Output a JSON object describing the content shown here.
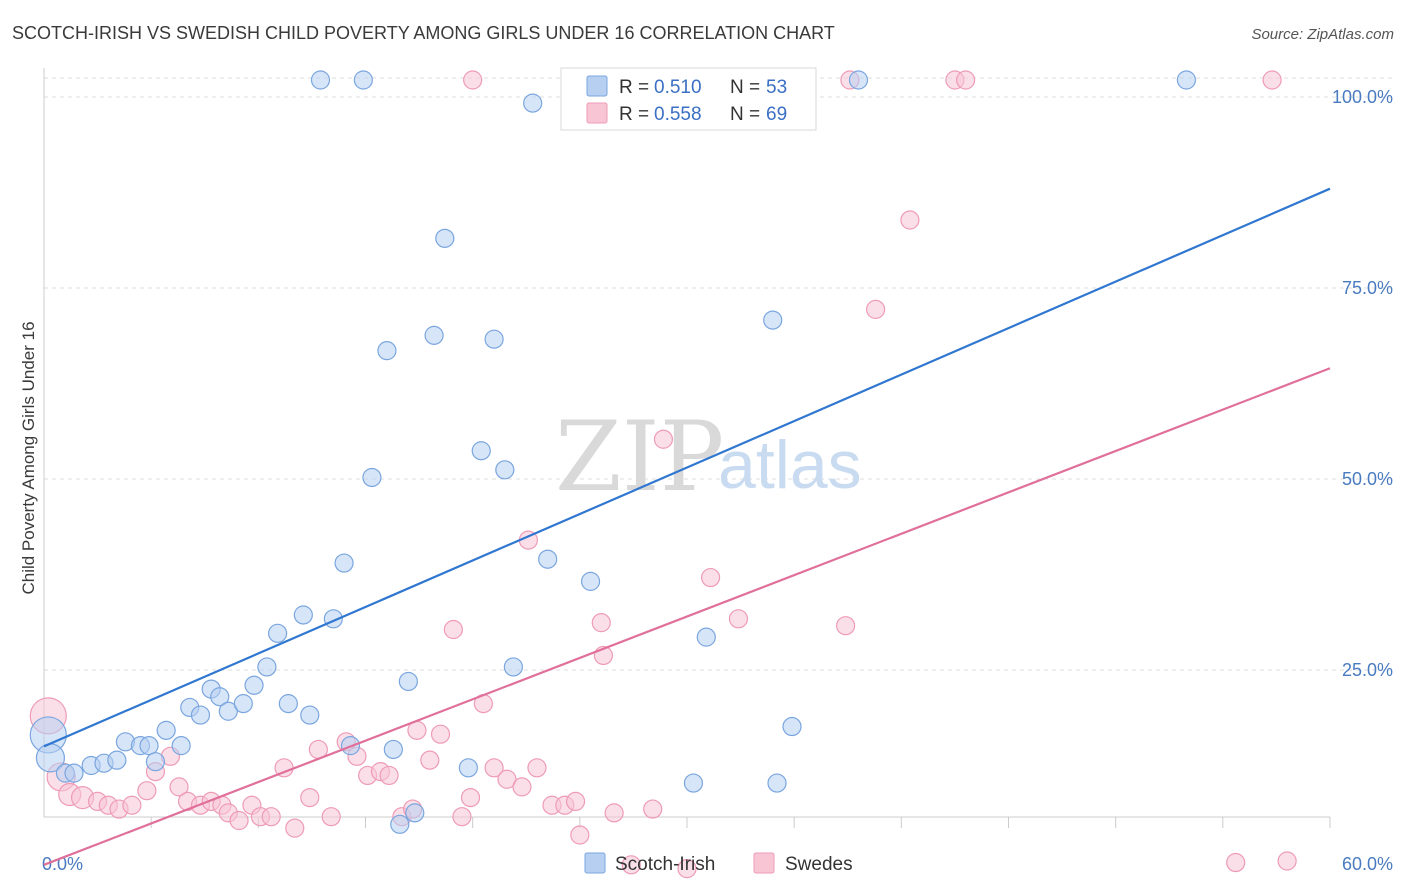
{
  "header": {
    "title": "SCOTCH-IRISH VS SWEDISH CHILD POVERTY AMONG GIRLS UNDER 16 CORRELATION CHART",
    "source": "Source: ZipAtlas.com"
  },
  "watermark": {
    "zip": "ZIP",
    "atlas": "atlas"
  },
  "legend": {
    "r_label": "R =",
    "n_label": "N =",
    "rows": [
      {
        "r": "0.510",
        "n": "53",
        "color": "#8fb8ec"
      },
      {
        "r": "0.558",
        "n": "69",
        "color": "#f2a6bf"
      }
    ]
  },
  "bottom_legend": [
    {
      "label": "Scotch-Irish",
      "color": "#8fb8ec"
    },
    {
      "label": "Swedes",
      "color": "#f2a6bf"
    }
  ],
  "colors": {
    "blue_fill": "#b7d0f2",
    "blue_stroke": "#7aa6df",
    "blue_line": "#2f77d0",
    "pink_fill": "#f8c5d5",
    "pink_stroke": "#ee9bb6",
    "pink_line": "#e0709a",
    "grid": "#dddddd",
    "tick_text": "#4a7bc0"
  },
  "chart_data": {
    "type": "scatter",
    "title": "SCOTCH-IRISH VS SWEDISH CHILD POVERTY AMONG GIRLS UNDER 16 CORRELATION CHART",
    "xlabel": "",
    "ylabel": "Child Poverty Among Girls Under 16",
    "xlim": [
      0,
      60
    ],
    "ylim": [
      0,
      100
    ],
    "x_tick_labels": [
      {
        "value": 0,
        "label": "0.0%"
      },
      {
        "value": 60,
        "label": "60.0%"
      }
    ],
    "y_tick_labels": [
      {
        "value": 25,
        "label": "25.0%"
      },
      {
        "value": 50,
        "label": "50.0%"
      },
      {
        "value": 75,
        "label": "75.0%"
      },
      {
        "value": 100,
        "label": "100.0%"
      }
    ],
    "grid": true,
    "legend_position": "top-center",
    "series": [
      {
        "name": "Scotch-Irish",
        "color": "#8fb8ec",
        "trend": {
          "x": [
            0,
            60
          ],
          "y": [
            15.0,
            88.0
          ]
        },
        "points": [
          {
            "x": 0.2,
            "y": 16.5,
            "s": 18
          },
          {
            "x": 0.3,
            "y": 13.5,
            "s": 14
          },
          {
            "x": 1.0,
            "y": 11.5,
            "s": 9
          },
          {
            "x": 1.4,
            "y": 11.5,
            "s": 9
          },
          {
            "x": 2.2,
            "y": 12.5,
            "s": 9
          },
          {
            "x": 2.8,
            "y": 12.8,
            "s": 9
          },
          {
            "x": 3.4,
            "y": 13.2,
            "s": 9
          },
          {
            "x": 3.8,
            "y": 15.6,
            "s": 9
          },
          {
            "x": 4.5,
            "y": 15.1,
            "s": 9
          },
          {
            "x": 4.9,
            "y": 15.1,
            "s": 9
          },
          {
            "x": 5.2,
            "y": 13.0,
            "s": 9
          },
          {
            "x": 5.7,
            "y": 17.1,
            "s": 9
          },
          {
            "x": 6.4,
            "y": 15.1,
            "s": 9
          },
          {
            "x": 6.8,
            "y": 20.1,
            "s": 9
          },
          {
            "x": 7.3,
            "y": 19.1,
            "s": 9
          },
          {
            "x": 7.8,
            "y": 22.5,
            "s": 9
          },
          {
            "x": 8.2,
            "y": 21.5,
            "s": 9
          },
          {
            "x": 8.6,
            "y": 19.6,
            "s": 9
          },
          {
            "x": 9.3,
            "y": 20.6,
            "s": 9
          },
          {
            "x": 9.8,
            "y": 23.0,
            "s": 9
          },
          {
            "x": 10.4,
            "y": 25.4,
            "s": 9
          },
          {
            "x": 10.9,
            "y": 29.8,
            "s": 9
          },
          {
            "x": 11.4,
            "y": 20.6,
            "s": 9
          },
          {
            "x": 12.1,
            "y": 32.2,
            "s": 9
          },
          {
            "x": 12.4,
            "y": 19.1,
            "s": 9
          },
          {
            "x": 13.5,
            "y": 31.7,
            "s": 9
          },
          {
            "x": 14.0,
            "y": 39.0,
            "s": 9
          },
          {
            "x": 14.3,
            "y": 15.1,
            "s": 9
          },
          {
            "x": 15.3,
            "y": 50.2,
            "s": 9
          },
          {
            "x": 16.0,
            "y": 66.8,
            "s": 9
          },
          {
            "x": 16.3,
            "y": 14.6,
            "s": 9
          },
          {
            "x": 16.6,
            "y": 4.8,
            "s": 9
          },
          {
            "x": 17.3,
            "y": 6.3,
            "s": 9
          },
          {
            "x": 17.0,
            "y": 23.5,
            "s": 9
          },
          {
            "x": 18.2,
            "y": 68.8,
            "s": 9
          },
          {
            "x": 18.7,
            "y": 81.5,
            "s": 9
          },
          {
            "x": 19.8,
            "y": 12.2,
            "s": 9
          },
          {
            "x": 20.4,
            "y": 53.7,
            "s": 9
          },
          {
            "x": 21.0,
            "y": 68.3,
            "s": 9
          },
          {
            "x": 21.5,
            "y": 51.2,
            "s": 9
          },
          {
            "x": 21.9,
            "y": 25.4,
            "s": 9
          },
          {
            "x": 22.8,
            "y": 99.2,
            "s": 9
          },
          {
            "x": 23.5,
            "y": 39.5,
            "s": 9
          },
          {
            "x": 25.5,
            "y": 36.6,
            "s": 9
          },
          {
            "x": 30.3,
            "y": 10.2,
            "s": 9
          },
          {
            "x": 30.9,
            "y": 29.3,
            "s": 9
          },
          {
            "x": 34.0,
            "y": 70.8,
            "s": 9
          },
          {
            "x": 34.2,
            "y": 10.2,
            "s": 9
          },
          {
            "x": 34.9,
            "y": 17.6,
            "s": 9
          },
          {
            "x": 12.9,
            "y": 104.6,
            "s": 9
          },
          {
            "x": 14.9,
            "y": 104.6,
            "s": 9
          },
          {
            "x": 38.0,
            "y": 104.6,
            "s": 9
          },
          {
            "x": 53.3,
            "y": 104.6,
            "s": 9
          }
        ]
      },
      {
        "name": "Swedes",
        "color": "#f2a6bf",
        "trend": {
          "x": [
            0,
            60
          ],
          "y": [
            -0.5,
            64.5
          ]
        },
        "points": [
          {
            "x": 0.2,
            "y": 19.0,
            "s": 18
          },
          {
            "x": 0.8,
            "y": 11.0,
            "s": 14
          },
          {
            "x": 1.2,
            "y": 8.7,
            "s": 11
          },
          {
            "x": 1.8,
            "y": 8.3,
            "s": 11
          },
          {
            "x": 2.5,
            "y": 7.8,
            "s": 9
          },
          {
            "x": 3.0,
            "y": 7.3,
            "s": 9
          },
          {
            "x": 3.5,
            "y": 6.8,
            "s": 9
          },
          {
            "x": 4.1,
            "y": 7.3,
            "s": 9
          },
          {
            "x": 4.8,
            "y": 9.2,
            "s": 9
          },
          {
            "x": 5.2,
            "y": 11.7,
            "s": 9
          },
          {
            "x": 5.9,
            "y": 13.7,
            "s": 9
          },
          {
            "x": 6.3,
            "y": 9.7,
            "s": 9
          },
          {
            "x": 6.7,
            "y": 7.8,
            "s": 9
          },
          {
            "x": 7.3,
            "y": 7.3,
            "s": 9
          },
          {
            "x": 7.8,
            "y": 7.8,
            "s": 9
          },
          {
            "x": 8.3,
            "y": 7.3,
            "s": 9
          },
          {
            "x": 8.6,
            "y": 6.3,
            "s": 9
          },
          {
            "x": 9.1,
            "y": 5.3,
            "s": 9
          },
          {
            "x": 9.7,
            "y": 7.3,
            "s": 9
          },
          {
            "x": 10.1,
            "y": 5.8,
            "s": 9
          },
          {
            "x": 10.6,
            "y": 5.8,
            "s": 9
          },
          {
            "x": 11.2,
            "y": 12.2,
            "s": 9
          },
          {
            "x": 11.7,
            "y": 4.3,
            "s": 9
          },
          {
            "x": 12.4,
            "y": 8.3,
            "s": 9
          },
          {
            "x": 12.8,
            "y": 14.6,
            "s": 9
          },
          {
            "x": 13.4,
            "y": 5.8,
            "s": 9
          },
          {
            "x": 14.1,
            "y": 15.6,
            "s": 9
          },
          {
            "x": 14.6,
            "y": 13.7,
            "s": 9
          },
          {
            "x": 15.1,
            "y": 11.2,
            "s": 9
          },
          {
            "x": 15.7,
            "y": 11.7,
            "s": 9
          },
          {
            "x": 16.1,
            "y": 11.2,
            "s": 9
          },
          {
            "x": 16.7,
            "y": 5.8,
            "s": 9
          },
          {
            "x": 17.2,
            "y": 6.8,
            "s": 9
          },
          {
            "x": 17.4,
            "y": 17.1,
            "s": 9
          },
          {
            "x": 18.0,
            "y": 13.2,
            "s": 9
          },
          {
            "x": 18.5,
            "y": 16.6,
            "s": 9
          },
          {
            "x": 19.1,
            "y": 30.3,
            "s": 9
          },
          {
            "x": 19.5,
            "y": 5.8,
            "s": 9
          },
          {
            "x": 19.9,
            "y": 8.3,
            "s": 9
          },
          {
            "x": 20.5,
            "y": 20.6,
            "s": 9
          },
          {
            "x": 21.0,
            "y": 12.2,
            "s": 9
          },
          {
            "x": 21.6,
            "y": 10.7,
            "s": 9
          },
          {
            "x": 22.3,
            "y": 9.7,
            "s": 9
          },
          {
            "x": 22.6,
            "y": 42.0,
            "s": 9
          },
          {
            "x": 23.0,
            "y": 12.2,
            "s": 9
          },
          {
            "x": 23.7,
            "y": 7.3,
            "s": 9
          },
          {
            "x": 24.3,
            "y": 7.3,
            "s": 9
          },
          {
            "x": 24.8,
            "y": 7.8,
            "s": 9
          },
          {
            "x": 25.0,
            "y": 3.4,
            "s": 9
          },
          {
            "x": 26.0,
            "y": 31.2,
            "s": 9
          },
          {
            "x": 26.1,
            "y": 26.9,
            "s": 9
          },
          {
            "x": 26.6,
            "y": 6.3,
            "s": 9
          },
          {
            "x": 27.4,
            "y": -0.5,
            "s": 9
          },
          {
            "x": 28.4,
            "y": 6.8,
            "s": 9
          },
          {
            "x": 28.9,
            "y": 55.2,
            "s": 9
          },
          {
            "x": 30.0,
            "y": -1.0,
            "s": 9
          },
          {
            "x": 31.1,
            "y": 37.1,
            "s": 9
          },
          {
            "x": 32.4,
            "y": 31.7,
            "s": 9
          },
          {
            "x": 37.4,
            "y": 30.8,
            "s": 9
          },
          {
            "x": 38.8,
            "y": 72.2,
            "s": 9
          },
          {
            "x": 40.4,
            "y": 83.9,
            "s": 9
          },
          {
            "x": 55.6,
            "y": -0.2,
            "s": 9
          },
          {
            "x": 58.0,
            "y": 0.0,
            "s": 9
          },
          {
            "x": 37.6,
            "y": 104.6,
            "s": 9
          },
          {
            "x": 42.5,
            "y": 104.6,
            "s": 9
          },
          {
            "x": 43.0,
            "y": 104.6,
            "s": 9
          },
          {
            "x": 57.3,
            "y": 104.6,
            "s": 9
          },
          {
            "x": 28.0,
            "y": 104.6,
            "s": 9
          },
          {
            "x": 20.0,
            "y": 104.6,
            "s": 9
          }
        ]
      }
    ]
  }
}
